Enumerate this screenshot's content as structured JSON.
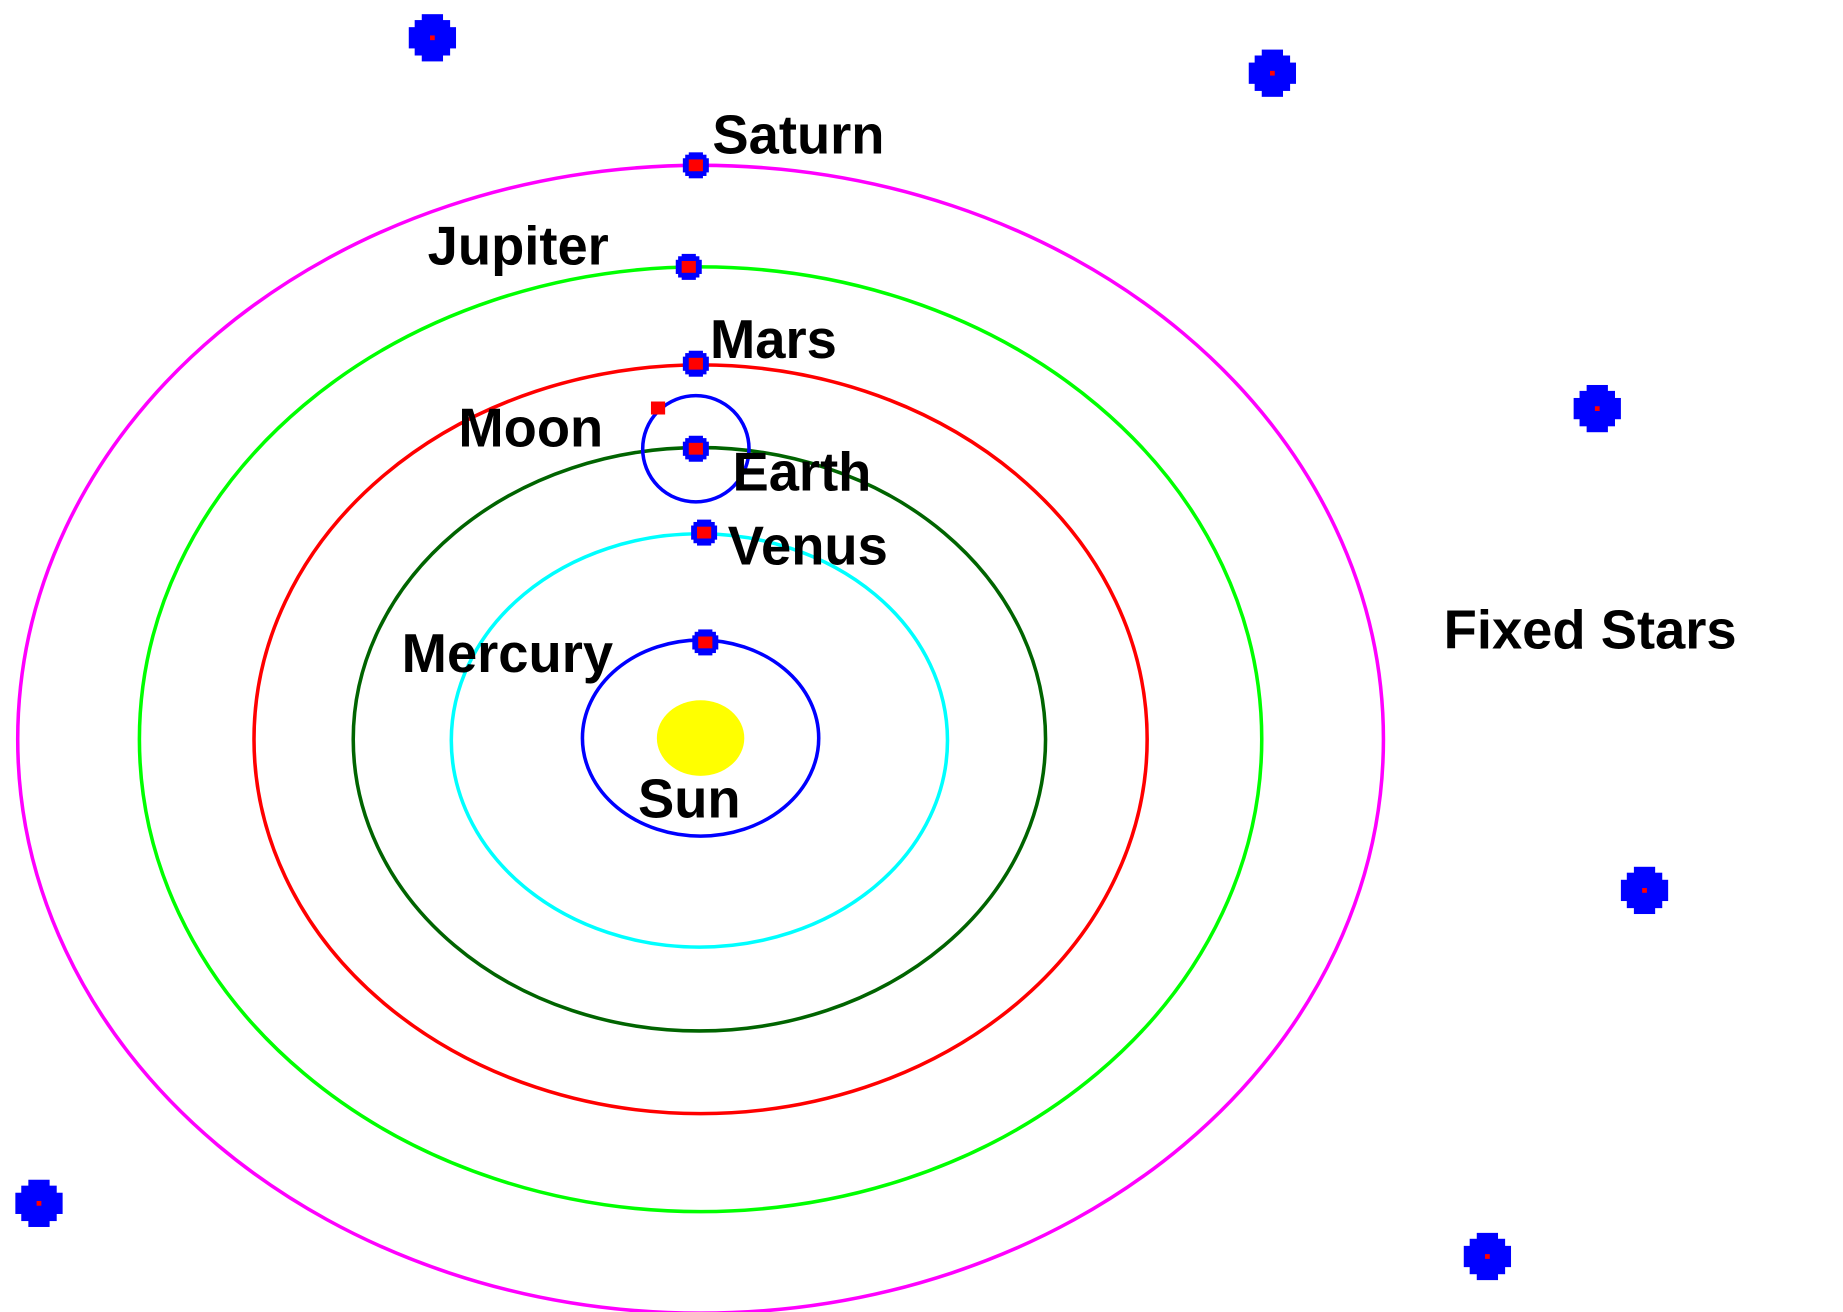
{
  "nodes": [
    {
      "label": "Saturn"
    },
    {
      "label": "Jupiter"
    },
    {
      "label": "Mars"
    },
    {
      "label": "Moon"
    },
    {
      "label": "Earth"
    },
    {
      "label": "Venus"
    },
    {
      "label": "Mercury"
    },
    {
      "label": "Sun"
    },
    {
      "label": "Fixed Stars"
    }
  ]
}
